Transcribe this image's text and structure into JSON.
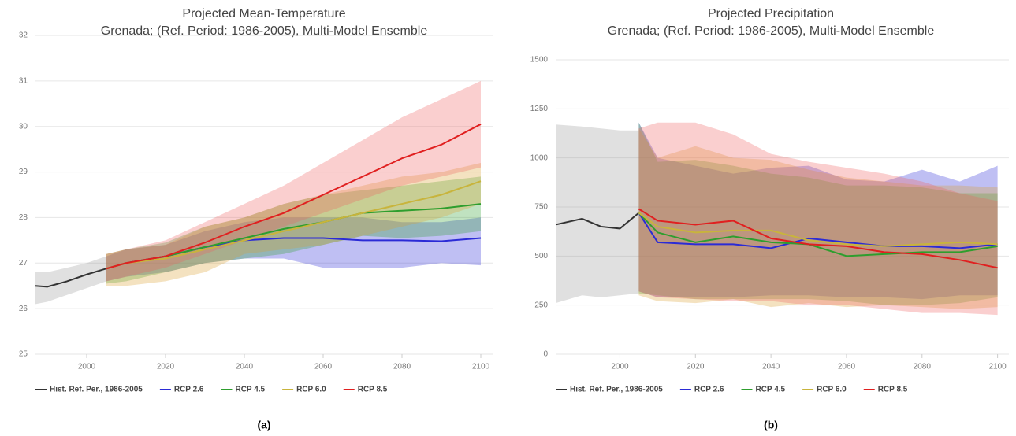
{
  "chart_data": [
    {
      "type": "line",
      "title": "Projected Mean-Temperature",
      "subtitle": "Grenada; (Ref. Period: 1986-2005), Multi-Model Ensemble",
      "caption": "(a)",
      "x": [
        1987,
        1990,
        1995,
        2000,
        2005,
        2010,
        2020,
        2030,
        2040,
        2050,
        2060,
        2070,
        2080,
        2090,
        2100
      ],
      "xlim": [
        1987,
        2103
      ],
      "xticks": [
        2000,
        2020,
        2040,
        2060,
        2080,
        2100
      ],
      "ylim": [
        25,
        32
      ],
      "yticks": [
        25,
        26,
        27,
        28,
        29,
        30,
        31,
        32
      ],
      "grid": true,
      "legend": "bottom",
      "series": [
        {
          "name": "Hist. Ref. Per., 1986-2005",
          "color": "#333333",
          "band_color": "#999999",
          "values": [
            26.5,
            26.48,
            26.6,
            26.75,
            26.88,
            null,
            null,
            null,
            null,
            null,
            null,
            null,
            null,
            null,
            null
          ],
          "lower": [
            26.1,
            26.15,
            26.3,
            26.45,
            26.6,
            null,
            null,
            null,
            null,
            null,
            null,
            null,
            null,
            null,
            null
          ],
          "upper": [
            26.8,
            26.8,
            26.9,
            27.0,
            27.15,
            null,
            null,
            null,
            null,
            null,
            null,
            null,
            null,
            null,
            null
          ]
        },
        {
          "name": "RCP 2.6",
          "color": "#2b2bd6",
          "band_color": "#2b2bd6",
          "values": [
            null,
            null,
            null,
            null,
            26.88,
            27.0,
            27.15,
            27.35,
            27.5,
            27.55,
            27.55,
            27.5,
            27.5,
            27.48,
            27.55
          ],
          "lower": [
            null,
            null,
            null,
            null,
            26.6,
            26.7,
            26.8,
            27.0,
            27.1,
            27.1,
            26.9,
            26.9,
            26.9,
            27.0,
            26.95
          ],
          "upper": [
            null,
            null,
            null,
            null,
            27.15,
            27.3,
            27.4,
            27.7,
            27.9,
            28.0,
            28.0,
            28.0,
            27.9,
            27.9,
            28.0
          ]
        },
        {
          "name": "RCP 4.5",
          "color": "#2e9e2e",
          "band_color": "#2e9e2e",
          "values": [
            null,
            null,
            null,
            null,
            26.88,
            27.0,
            27.15,
            27.35,
            27.55,
            27.75,
            27.9,
            28.1,
            28.15,
            28.2,
            28.3
          ],
          "lower": [
            null,
            null,
            null,
            null,
            26.55,
            26.6,
            26.8,
            27.0,
            27.1,
            27.2,
            27.4,
            27.6,
            27.55,
            27.6,
            27.7
          ],
          "upper": [
            null,
            null,
            null,
            null,
            27.2,
            27.3,
            27.45,
            27.8,
            28.0,
            28.3,
            28.5,
            28.6,
            28.7,
            28.8,
            28.9
          ]
        },
        {
          "name": "RCP 6.0",
          "color": "#c8b43c",
          "band_color": "#d9a030",
          "values": [
            null,
            null,
            null,
            null,
            26.88,
            27.0,
            27.1,
            27.3,
            27.5,
            27.7,
            27.9,
            28.1,
            28.3,
            28.5,
            28.8
          ],
          "lower": [
            null,
            null,
            null,
            null,
            26.5,
            26.5,
            26.6,
            26.8,
            27.2,
            27.3,
            27.4,
            27.6,
            27.8,
            28.0,
            28.3
          ],
          "upper": [
            null,
            null,
            null,
            null,
            27.2,
            27.3,
            27.4,
            27.8,
            28.0,
            28.3,
            28.5,
            28.7,
            28.9,
            29.0,
            29.2
          ]
        },
        {
          "name": "RCP 8.5",
          "color": "#e02020",
          "band_color": "#f06060",
          "values": [
            null,
            null,
            null,
            null,
            26.88,
            27.0,
            27.15,
            27.45,
            27.8,
            28.1,
            28.5,
            28.9,
            29.3,
            29.6,
            30.05
          ],
          "lower": [
            null,
            null,
            null,
            null,
            26.6,
            26.7,
            26.9,
            27.2,
            27.5,
            27.8,
            28.1,
            28.4,
            28.7,
            28.9,
            29.1
          ],
          "upper": [
            null,
            null,
            null,
            null,
            27.2,
            27.3,
            27.5,
            27.9,
            28.3,
            28.7,
            29.2,
            29.7,
            30.2,
            30.6,
            31.0
          ]
        }
      ]
    },
    {
      "type": "line",
      "title": "Projected Precipitation",
      "subtitle": "Grenada; (Ref. Period: 1986-2005), Multi-Model Ensemble",
      "caption": "(b)",
      "x": [
        1983,
        1990,
        1995,
        2000,
        2005,
        2010,
        2020,
        2030,
        2040,
        2050,
        2060,
        2070,
        2080,
        2090,
        2100
      ],
      "xlim": [
        1983,
        2103
      ],
      "xticks": [
        2000,
        2020,
        2040,
        2060,
        2080,
        2100
      ],
      "ylim": [
        0,
        1500
      ],
      "yticks": [
        0,
        250,
        500,
        750,
        1000,
        1250,
        1500
      ],
      "grid": true,
      "legend": "bottom",
      "series": [
        {
          "name": "Hist. Ref. Per., 1986-2005",
          "color": "#333333",
          "band_color": "#999999",
          "values": [
            660,
            690,
            650,
            640,
            720,
            null,
            null,
            null,
            null,
            null,
            null,
            null,
            null,
            null,
            null
          ],
          "lower": [
            260,
            300,
            290,
            300,
            310,
            null,
            null,
            null,
            null,
            null,
            null,
            null,
            null,
            null,
            null
          ],
          "upper": [
            1170,
            1160,
            1150,
            1140,
            1140,
            null,
            null,
            null,
            null,
            null,
            null,
            null,
            null,
            null,
            null
          ]
        },
        {
          "name": "RCP 2.6",
          "color": "#2b2bd6",
          "band_color": "#2b2bd6",
          "values": [
            null,
            null,
            null,
            null,
            720,
            570,
            560,
            560,
            540,
            590,
            570,
            550,
            550,
            540,
            560
          ],
          "lower": [
            null,
            null,
            null,
            null,
            320,
            290,
            290,
            290,
            300,
            300,
            290,
            290,
            280,
            300,
            300
          ],
          "upper": [
            null,
            null,
            null,
            null,
            1180,
            1000,
            960,
            920,
            950,
            960,
            890,
            880,
            940,
            880,
            960
          ]
        },
        {
          "name": "RCP 4.5",
          "color": "#2e9e2e",
          "band_color": "#2e9e2e",
          "values": [
            null,
            null,
            null,
            null,
            720,
            620,
            570,
            600,
            570,
            560,
            500,
            510,
            520,
            520,
            550
          ],
          "lower": [
            null,
            null,
            null,
            null,
            310,
            300,
            280,
            280,
            280,
            280,
            270,
            250,
            250,
            260,
            290
          ],
          "upper": [
            null,
            null,
            null,
            null,
            1180,
            980,
            990,
            960,
            920,
            900,
            860,
            860,
            850,
            820,
            820
          ]
        },
        {
          "name": "RCP 6.0",
          "color": "#c8b43c",
          "band_color": "#d9a030",
          "values": [
            null,
            null,
            null,
            null,
            720,
            650,
            620,
            630,
            630,
            580,
            560,
            550,
            560,
            570,
            560
          ],
          "lower": [
            null,
            null,
            null,
            null,
            300,
            270,
            260,
            280,
            240,
            260,
            240,
            250,
            240,
            230,
            240
          ],
          "upper": [
            null,
            null,
            null,
            null,
            1150,
            1000,
            1060,
            1000,
            990,
            940,
            900,
            880,
            860,
            860,
            850
          ]
        },
        {
          "name": "RCP 8.5",
          "color": "#e02020",
          "band_color": "#f06060",
          "values": [
            null,
            null,
            null,
            null,
            740,
            680,
            660,
            680,
            590,
            560,
            550,
            520,
            510,
            480,
            440
          ],
          "lower": [
            null,
            null,
            null,
            null,
            320,
            290,
            280,
            270,
            270,
            250,
            250,
            230,
            210,
            210,
            200
          ],
          "upper": [
            null,
            null,
            null,
            null,
            1150,
            1180,
            1180,
            1120,
            1020,
            980,
            950,
            920,
            880,
            820,
            780
          ]
        }
      ]
    }
  ]
}
